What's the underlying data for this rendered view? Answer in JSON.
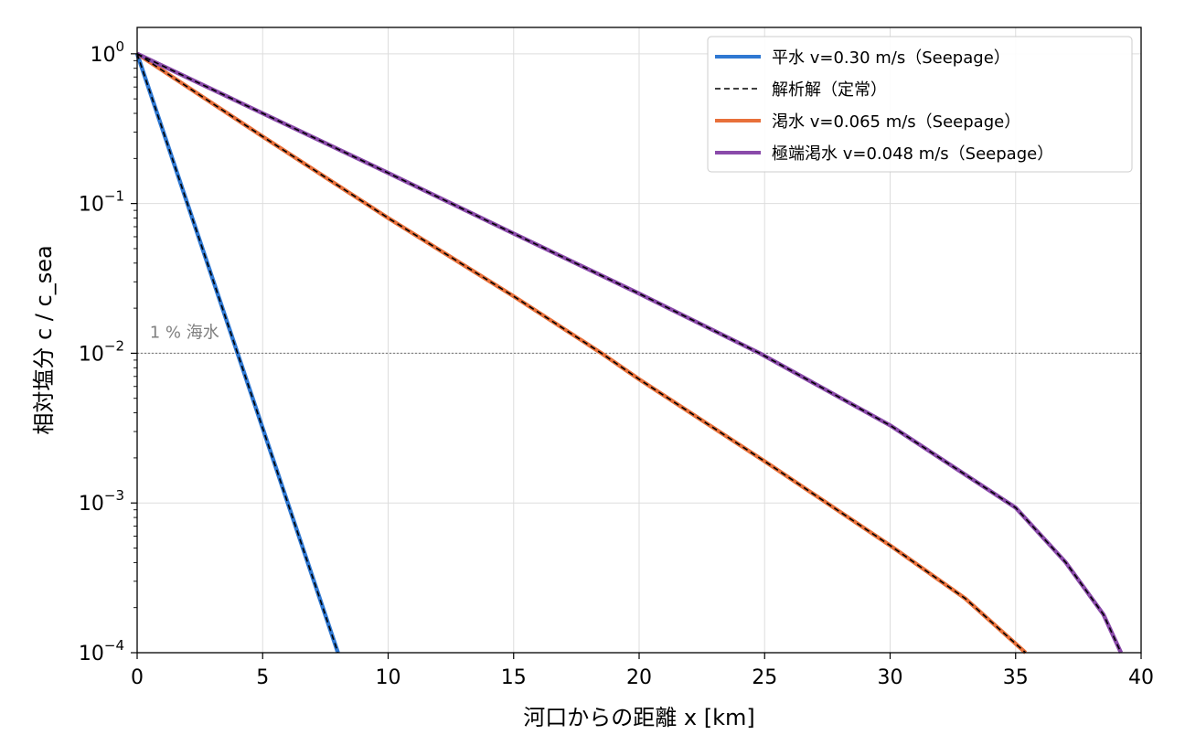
{
  "chart_data": {
    "type": "line",
    "title": "",
    "xlabel": "河口からの距離 x [km]",
    "ylabel": "相対塩分 c / c_sea",
    "xlim": [
      0,
      40
    ],
    "ylim": [
      0.0001,
      1.5
    ],
    "yscale": "log",
    "grid": true,
    "legend_position": "top-right",
    "x_ticks": [
      "0",
      "5",
      "10",
      "15",
      "20",
      "25",
      "30",
      "35",
      "40"
    ],
    "y_ticks": [
      {
        "base": "10",
        "exp": "0"
      },
      {
        "base": "10",
        "exp": "−1"
      },
      {
        "base": "10",
        "exp": "−2"
      },
      {
        "base": "10",
        "exp": "−3"
      },
      {
        "base": "10",
        "exp": "−4"
      }
    ],
    "reference_line": {
      "y": 0.01,
      "label": "1 % 海水",
      "color": "#808080"
    },
    "series": [
      {
        "name": "平水 v=0.30 m/s（Seepage）",
        "color": "#2f78d2",
        "x": [
          0,
          4,
          8
        ],
        "y": [
          1.0,
          0.01,
          0.0001
        ]
      },
      {
        "name": "渇水 v=0.065 m/s（Seepage）",
        "color": "#e8703a",
        "x": [
          0,
          5,
          10,
          15,
          18.5,
          20,
          25,
          30,
          33,
          35.4
        ],
        "y": [
          1.0,
          0.28,
          0.08,
          0.024,
          0.01,
          0.0067,
          0.0019,
          0.00052,
          0.00023,
          0.0001
        ]
      },
      {
        "name": "極端渇水 v=0.048 m/s（Seepage）",
        "color": "#8a4aaa",
        "x": [
          0,
          5,
          10,
          15,
          20,
          24.8,
          30,
          35,
          37,
          38.5,
          39.2
        ],
        "y": [
          1.0,
          0.4,
          0.16,
          0.063,
          0.025,
          0.01,
          0.0033,
          0.00093,
          0.0004,
          0.00018,
          0.0001
        ]
      }
    ],
    "analytic": {
      "name": "解析解（定常）",
      "color": "#000000",
      "style": "dashed"
    },
    "legend_order": [
      "平水 v=0.30 m/s（Seepage）",
      "解析解（定常）",
      "渇水 v=0.065 m/s（Seepage）",
      "極端渇水 v=0.048 m/s（Seepage）"
    ]
  }
}
